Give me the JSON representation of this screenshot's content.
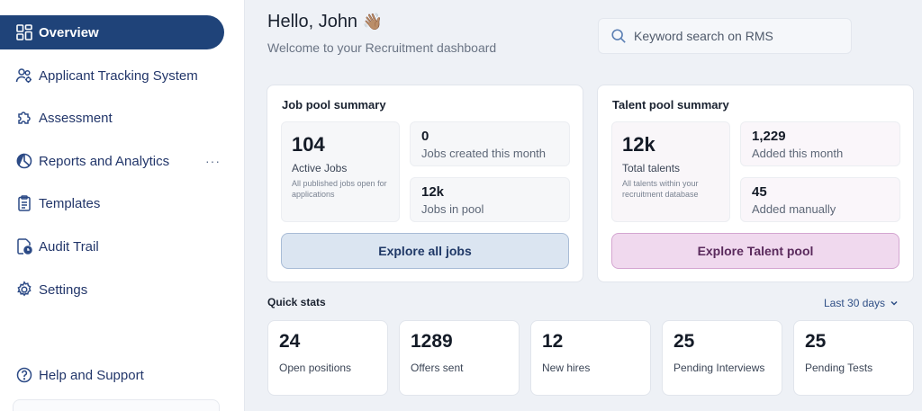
{
  "sidebar": {
    "items": [
      {
        "label": "Overview",
        "icon": "grid-icon",
        "active": true
      },
      {
        "label": "Applicant Tracking System",
        "icon": "users-gear-icon"
      },
      {
        "label": "Assessment",
        "icon": "puzzle-icon"
      },
      {
        "label": "Reports and Analytics",
        "icon": "pie-chart-icon",
        "more": "···"
      },
      {
        "label": "Templates",
        "icon": "clipboard-icon"
      },
      {
        "label": "Audit Trail",
        "icon": "document-clock-icon"
      },
      {
        "label": "Settings",
        "icon": "gear-icon"
      }
    ],
    "help": {
      "label": "Help and Support",
      "icon": "help-circle-icon"
    }
  },
  "header": {
    "greeting": "Hello, John",
    "greeting_emoji": "👋🏽",
    "subtitle": "Welcome to your Recruitment dashboard",
    "search_placeholder": "Keyword search on RMS"
  },
  "job_pool": {
    "title": "Job pool summary",
    "main": {
      "value": "104",
      "label": "Active Jobs",
      "desc": "All published jobs open for applications"
    },
    "stats": [
      {
        "value": "0",
        "label": "Jobs created this month"
      },
      {
        "value": "12k",
        "label": "Jobs in pool"
      }
    ],
    "button": "Explore all jobs"
  },
  "talent_pool": {
    "title": "Talent pool summary",
    "main": {
      "value": "12k",
      "label": "Total talents",
      "desc": "All talents within your recruitment database"
    },
    "stats": [
      {
        "value": "1,229",
        "label": "Added this month"
      },
      {
        "value": "45",
        "label": "Added manually"
      }
    ],
    "button": "Explore Talent pool"
  },
  "quick_stats": {
    "title": "Quick stats",
    "range": "Last 30 days",
    "items": [
      {
        "value": "24",
        "label": "Open positions"
      },
      {
        "value": "1289",
        "label": "Offers sent"
      },
      {
        "value": "12",
        "label": "New hires"
      },
      {
        "value": "25",
        "label": "Pending Interviews"
      },
      {
        "value": "25",
        "label": "Pending Tests"
      }
    ]
  },
  "colors": {
    "accent": "#1f4379",
    "jobs_button_bg": "#dbe5f1",
    "talent_button_bg": "#f0d9ee",
    "page_bg": "#eef1f6"
  }
}
